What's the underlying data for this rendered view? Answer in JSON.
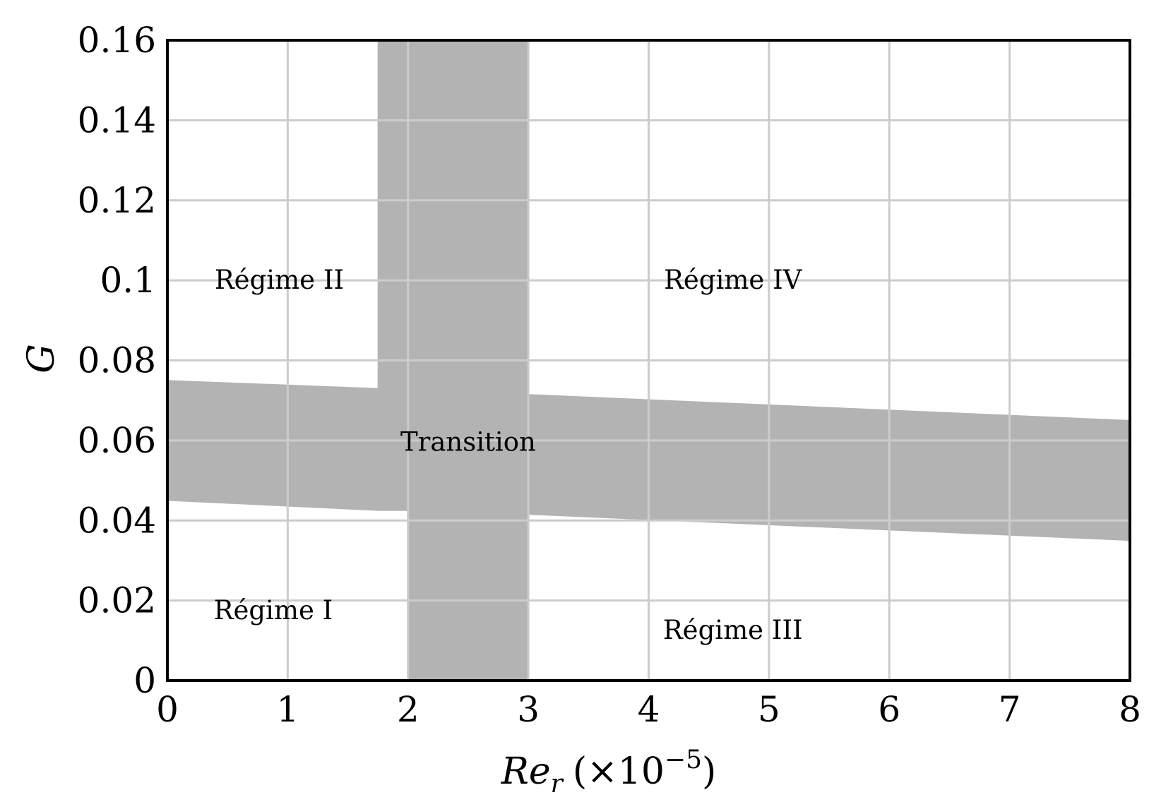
{
  "chart_data": {
    "type": "area",
    "title": "",
    "xlabel": {
      "base": "Re",
      "subscript": "r",
      "factor": "(×10",
      "exponent": "−5",
      "close": ")"
    },
    "ylabel": "G",
    "xlim": [
      0,
      8
    ],
    "ylim": [
      0,
      0.16
    ],
    "grid": true,
    "x_ticks": [
      0,
      1,
      2,
      3,
      4,
      5,
      6,
      7,
      8
    ],
    "x_tick_labels": [
      "0",
      "1",
      "2",
      "3",
      "4",
      "5",
      "6",
      "7",
      "8"
    ],
    "y_ticks": [
      0,
      0.02,
      0.04,
      0.06,
      0.08,
      0.1,
      0.12,
      0.14,
      0.16
    ],
    "y_tick_labels": [
      "0",
      "0.02",
      "0.04",
      "0.06",
      "0.08",
      "0.1",
      "0.12",
      "0.14",
      "0.16"
    ],
    "fill_color": "#b3b3b3",
    "grid_color": "#cccccc",
    "regions": [
      {
        "id": "transition-band-left",
        "polygon": [
          [
            0,
            0.075
          ],
          [
            1.75,
            0.073
          ],
          [
            1.75,
            0.0425
          ],
          [
            0,
            0.045
          ]
        ]
      },
      {
        "id": "transition-band-upper-strip",
        "polygon": [
          [
            1.75,
            0.16
          ],
          [
            3.0,
            0.16
          ],
          [
            3.0,
            0.0415
          ],
          [
            2.0,
            0.0425
          ],
          [
            1.75,
            0.0425
          ]
        ]
      },
      {
        "id": "transition-band-lower-strip",
        "polygon": [
          [
            2.0,
            0.0425
          ],
          [
            3.0,
            0.0425
          ],
          [
            3.0,
            0
          ],
          [
            2.0,
            0
          ]
        ]
      },
      {
        "id": "transition-band-right",
        "polygon": [
          [
            3.0,
            0.0715
          ],
          [
            8.0,
            0.065
          ],
          [
            8.0,
            0.035
          ],
          [
            3.0,
            0.0415
          ]
        ]
      }
    ],
    "annotations": [
      {
        "text": "Régime II",
        "x": 0.93,
        "y": 0.1
      },
      {
        "text": "Régime IV",
        "x": 4.7,
        "y": 0.1
      },
      {
        "text": "Transition",
        "x": 2.5,
        "y": 0.0595
      },
      {
        "text": "Régime I",
        "x": 0.88,
        "y": 0.0175
      },
      {
        "text": "Régime III",
        "x": 4.7,
        "y": 0.0125
      }
    ]
  }
}
